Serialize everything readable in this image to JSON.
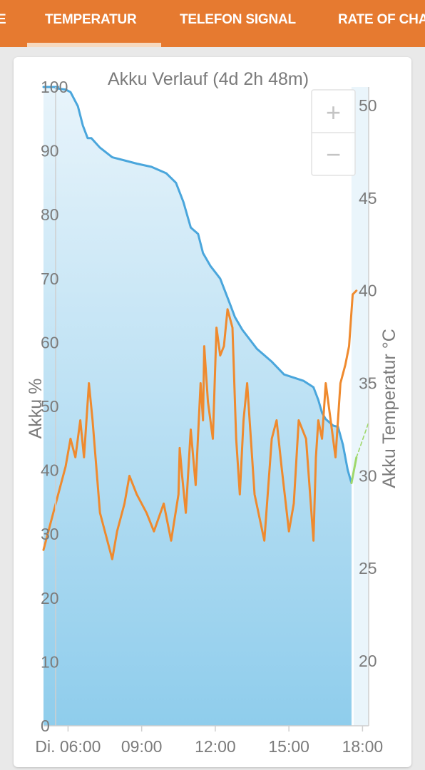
{
  "tabs": [
    {
      "label": "E"
    },
    {
      "label": "TEMPERATUR"
    },
    {
      "label": "TELEFON SIGNAL"
    },
    {
      "label": "RATE OF CHA"
    }
  ],
  "colors": {
    "tab_bar": "#e67a30",
    "battery_line": "#4aa6dc",
    "temperature_line": "#ef8a2e",
    "projection_line": "#9fd86a",
    "area_top": "#e8f4fb",
    "area_bottom": "#8fcdec"
  },
  "zoom": {
    "in_label": "+",
    "out_label": "−"
  },
  "chart_data": {
    "type": "line",
    "title": "Akku Verlauf (4d 2h 48m)",
    "xlabel": "",
    "ylabel": "Akku %",
    "y2label": "Akku Temperatur °C",
    "xlim": [
      5.0,
      18.25
    ],
    "ylim": [
      0,
      100
    ],
    "y2lim": [
      16.5,
      51
    ],
    "x_ticks": [
      {
        "x": 6,
        "label": "Di. 06:00"
      },
      {
        "x": 9,
        "label": "09:00"
      },
      {
        "x": 12,
        "label": "12:00"
      },
      {
        "x": 15,
        "label": "15:00"
      },
      {
        "x": 18,
        "label": "18:00"
      }
    ],
    "y_ticks": [
      0,
      10,
      20,
      30,
      40,
      50,
      60,
      70,
      80,
      90,
      100
    ],
    "y2_ticks": [
      20,
      25,
      30,
      35,
      40,
      45,
      50
    ],
    "grid": false,
    "legend": "none",
    "series": [
      {
        "axis": "left",
        "color": "#4aa6dc",
        "fill": true,
        "x": [
          5.0,
          5.6,
          5.5,
          5.9,
          6.1,
          6.4,
          6.6,
          6.8,
          6.95,
          7.3,
          7.8,
          8.3,
          8.8,
          9.4,
          10.0,
          10.4,
          10.7,
          11.0,
          11.3,
          11.5,
          11.8,
          12.0,
          12.2,
          12.6,
          12.8,
          13.1,
          13.3,
          13.7,
          14.0,
          14.3,
          14.8,
          15.2,
          15.6,
          16.0,
          16.2,
          16.35,
          16.5,
          16.8,
          17.0,
          17.2,
          17.4,
          17.55
        ],
        "values": [
          100,
          100,
          99.8,
          99.6,
          99.2,
          97,
          94,
          92,
          92,
          90.5,
          89,
          88.5,
          88,
          87.5,
          86.5,
          85,
          82,
          78,
          77,
          74,
          72,
          71,
          70,
          66,
          64,
          62,
          61,
          59,
          58,
          57,
          55,
          54.5,
          54,
          53,
          51,
          49,
          48,
          47,
          46.8,
          44,
          40,
          38
        ]
      },
      {
        "axis": "left",
        "color": "#9fd86a",
        "dashed": false,
        "x": [
          17.55,
          17.75
        ],
        "values": [
          38,
          42
        ]
      },
      {
        "axis": "left",
        "color": "#9fd86a",
        "dashed": true,
        "x": [
          17.75,
          18.25
        ],
        "values": [
          42,
          47.5
        ]
      },
      {
        "axis": "right",
        "color": "#ef8a2e",
        "x": [
          5.0,
          5.3,
          5.6,
          5.9,
          6.1,
          6.3,
          6.5,
          6.65,
          6.85,
          7.0,
          7.3,
          7.8,
          8.0,
          8.3,
          8.5,
          8.8,
          9.2,
          9.5,
          9.9,
          10.2,
          10.5,
          10.55,
          10.65,
          10.8,
          11.0,
          11.2,
          11.4,
          11.5,
          11.55,
          11.7,
          11.9,
          12.05,
          12.2,
          12.35,
          12.5,
          12.7,
          12.85,
          13.0,
          13.15,
          13.3,
          13.6,
          14.0,
          14.3,
          14.5,
          14.7,
          15.0,
          15.2,
          15.4,
          15.7,
          16.0,
          16.1,
          16.2,
          16.35,
          16.5,
          16.7,
          16.9,
          17.1,
          17.3,
          17.45,
          17.6,
          17.75
        ],
        "values": [
          26,
          27.5,
          29,
          30.5,
          32,
          31,
          33,
          31,
          35,
          33,
          28,
          25.5,
          27,
          28.5,
          30,
          29,
          28,
          27,
          28.5,
          26.5,
          29,
          31.5,
          30,
          28,
          32.5,
          29.5,
          35,
          33,
          37,
          34,
          32,
          38,
          36.5,
          37,
          39,
          38,
          32,
          29,
          33,
          35,
          29,
          26.5,
          32,
          33,
          30.5,
          27,
          28.5,
          33,
          32,
          26.5,
          31,
          33,
          32,
          35,
          33,
          31,
          35,
          36,
          37,
          39.8,
          40
        ]
      }
    ]
  }
}
